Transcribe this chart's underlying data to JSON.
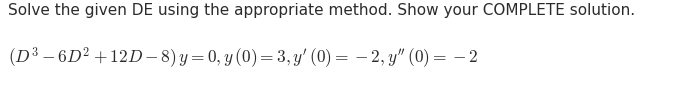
{
  "line1": "Solve the given DE using the appropriate method. Show your COMPLETE solution.",
  "line2_math": "$(D^3 - 6D^2 + 12D - 8)\\, y = 0, y\\,(0) = 3, y^{\\prime}\\,(0) = -2, y^{\\prime\\prime}\\,(0) = -2$",
  "line1_fontsize": 11.0,
  "line2_fontsize": 12.5,
  "text_color": "#2b2b2b",
  "bg_color": "#ffffff",
  "fig_width": 6.82,
  "fig_height": 0.87,
  "dpi": 100
}
